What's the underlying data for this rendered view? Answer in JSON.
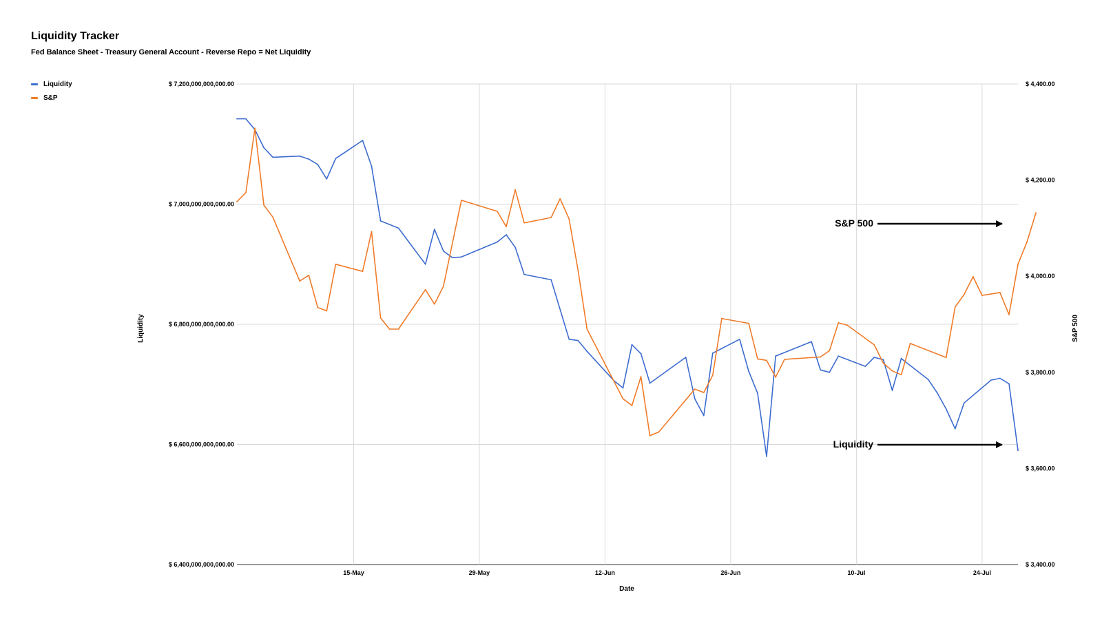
{
  "title": "Liquidity Tracker",
  "subtitle": "Fed Balance Sheet - Treasury General Account - Reverse Repo = Net Liquidity",
  "legend": [
    {
      "label": "Liquidity",
      "color": "#3c6ccf"
    },
    {
      "label": "S&P",
      "color": "#f07b28"
    }
  ],
  "annotations": [
    {
      "text": "S&P 500",
      "series": "S&P"
    },
    {
      "text": "Liquidity",
      "series": "Liquidity"
    }
  ],
  "chart_data": {
    "type": "line",
    "title": "Liquidity Tracker",
    "subtitle": "Fed Balance Sheet - Treasury General Account - Reverse Repo = Net Liquidity",
    "xlabel": "Date",
    "ylabel_left": "Liquidity",
    "ylabel_right": "S&P 500",
    "x_range": [
      "2023-05-02",
      "2023-07-28"
    ],
    "x_ticks": [
      {
        "date": "2023-05-15",
        "label": "15-May"
      },
      {
        "date": "2023-05-29",
        "label": "29-May"
      },
      {
        "date": "2023-06-12",
        "label": "12-Jun"
      },
      {
        "date": "2023-06-26",
        "label": "26-Jun"
      },
      {
        "date": "2023-07-10",
        "label": "10-Jul"
      },
      {
        "date": "2023-07-24",
        "label": "24-Jul"
      }
    ],
    "ylim_left": [
      6400000000000,
      7200000000000
    ],
    "ylim_right": [
      3400,
      4400
    ],
    "y_ticks_left": [
      {
        "value": 6400000000000,
        "label": "$ 6,400,000,000,000.00"
      },
      {
        "value": 6600000000000,
        "label": "$ 6,600,000,000,000.00"
      },
      {
        "value": 6800000000000,
        "label": "$ 6,800,000,000,000.00"
      },
      {
        "value": 7000000000000,
        "label": "$ 7,000,000,000,000.00"
      },
      {
        "value": 7200000000000,
        "label": "$ 7,200,000,000,000.00"
      }
    ],
    "y_ticks_right": [
      {
        "value": 3400,
        "label": "$ 3,400.00"
      },
      {
        "value": 3600,
        "label": "$ 3,600.00"
      },
      {
        "value": 3800,
        "label": "$ 3,800.00"
      },
      {
        "value": 4000,
        "label": "$ 4,000.00"
      },
      {
        "value": 4200,
        "label": "$ 4,200.00"
      },
      {
        "value": 4400,
        "label": "$ 4,400.00"
      }
    ],
    "grid": true,
    "legend_position": "top-left",
    "series": [
      {
        "name": "Liquidity",
        "axis": "left",
        "color": "#3c6ccf",
        "points": [
          [
            "2023-05-02",
            7142000000000
          ],
          [
            "2023-05-03",
            7142000000000
          ],
          [
            "2023-05-04",
            7124000000000
          ],
          [
            "2023-05-05",
            7094000000000
          ],
          [
            "2023-05-06",
            7078000000000
          ],
          [
            "2023-05-09",
            7080000000000
          ],
          [
            "2023-05-10",
            7075000000000
          ],
          [
            "2023-05-11",
            7066000000000
          ],
          [
            "2023-05-12",
            7042000000000
          ],
          [
            "2023-05-13",
            7076000000000
          ],
          [
            "2023-05-16",
            7106000000000
          ],
          [
            "2023-05-17",
            7063000000000
          ],
          [
            "2023-05-18",
            6972000000000
          ],
          [
            "2023-05-20",
            6960000000000
          ],
          [
            "2023-05-23",
            6900000000000
          ],
          [
            "2023-05-24",
            6958000000000
          ],
          [
            "2023-05-25",
            6922000000000
          ],
          [
            "2023-05-26",
            6911000000000
          ],
          [
            "2023-05-27",
            6912000000000
          ],
          [
            "2023-05-31",
            6937000000000
          ],
          [
            "2023-06-01",
            6949000000000
          ],
          [
            "2023-06-02",
            6928000000000
          ],
          [
            "2023-06-03",
            6883000000000
          ],
          [
            "2023-06-06",
            6874000000000
          ],
          [
            "2023-06-08",
            6775000000000
          ],
          [
            "2023-06-09",
            6773000000000
          ],
          [
            "2023-06-10",
            6755000000000
          ],
          [
            "2023-06-13",
            6706000000000
          ],
          [
            "2023-06-14",
            6694000000000
          ],
          [
            "2023-06-15",
            6766000000000
          ],
          [
            "2023-06-16",
            6751000000000
          ],
          [
            "2023-06-17",
            6702000000000
          ],
          [
            "2023-06-21",
            6745000000000
          ],
          [
            "2023-06-22",
            6676000000000
          ],
          [
            "2023-06-23",
            6648000000000
          ],
          [
            "2023-06-24",
            6752000000000
          ],
          [
            "2023-06-27",
            6775000000000
          ],
          [
            "2023-06-28",
            6722000000000
          ],
          [
            "2023-06-29",
            6685000000000
          ],
          [
            "2023-06-30",
            6580000000000
          ],
          [
            "2023-07-01",
            6747000000000
          ],
          [
            "2023-07-05",
            6771000000000
          ],
          [
            "2023-07-06",
            6724000000000
          ],
          [
            "2023-07-07",
            6720000000000
          ],
          [
            "2023-07-08",
            6747000000000
          ],
          [
            "2023-07-11",
            6730000000000
          ],
          [
            "2023-07-12",
            6745000000000
          ],
          [
            "2023-07-13",
            6741000000000
          ],
          [
            "2023-07-14",
            6690000000000
          ],
          [
            "2023-07-15",
            6743000000000
          ],
          [
            "2023-07-18",
            6708000000000
          ],
          [
            "2023-07-19",
            6686000000000
          ],
          [
            "2023-07-20",
            6659000000000
          ],
          [
            "2023-07-21",
            6626000000000
          ],
          [
            "2023-07-22",
            6669000000000
          ],
          [
            "2023-07-25",
            6707000000000
          ],
          [
            "2023-07-26",
            6710000000000
          ],
          [
            "2023-07-27",
            6701000000000
          ],
          [
            "2023-07-28",
            6590000000000
          ]
        ]
      },
      {
        "name": "S&P",
        "axis": "right",
        "color": "#f07b28",
        "points": [
          [
            "2023-05-02",
            4155
          ],
          [
            "2023-05-03",
            4174
          ],
          [
            "2023-05-04",
            4308
          ],
          [
            "2023-05-05",
            4148
          ],
          [
            "2023-05-06",
            4123
          ],
          [
            "2023-05-09",
            3990
          ],
          [
            "2023-05-10",
            4002
          ],
          [
            "2023-05-11",
            3935
          ],
          [
            "2023-05-12",
            3928
          ],
          [
            "2023-05-13",
            4025
          ],
          [
            "2023-05-16",
            4010
          ],
          [
            "2023-05-17",
            4093
          ],
          [
            "2023-05-18",
            3913
          ],
          [
            "2023-05-19",
            3890
          ],
          [
            "2023-05-20",
            3890
          ],
          [
            "2023-05-23",
            3972
          ],
          [
            "2023-05-24",
            3942
          ],
          [
            "2023-05-25",
            3979
          ],
          [
            "2023-05-27",
            4158
          ],
          [
            "2023-05-31",
            4135
          ],
          [
            "2023-06-01",
            4103
          ],
          [
            "2023-06-02",
            4180
          ],
          [
            "2023-06-03",
            4111
          ],
          [
            "2023-06-06",
            4122
          ],
          [
            "2023-06-07",
            4161
          ],
          [
            "2023-06-08",
            4119
          ],
          [
            "2023-06-09",
            4012
          ],
          [
            "2023-06-10",
            3890
          ],
          [
            "2023-06-14",
            3745
          ],
          [
            "2023-06-15",
            3731
          ],
          [
            "2023-06-16",
            3791
          ],
          [
            "2023-06-17",
            3668
          ],
          [
            "2023-06-18",
            3676
          ],
          [
            "2023-06-22",
            3765
          ],
          [
            "2023-06-23",
            3758
          ],
          [
            "2023-06-24",
            3794
          ],
          [
            "2023-06-25",
            3912
          ],
          [
            "2023-06-28",
            3902
          ],
          [
            "2023-06-29",
            3828
          ],
          [
            "2023-06-30",
            3825
          ],
          [
            "2023-07-01",
            3790
          ],
          [
            "2023-07-02",
            3827
          ],
          [
            "2023-07-06",
            3832
          ],
          [
            "2023-07-07",
            3845
          ],
          [
            "2023-07-08",
            3903
          ],
          [
            "2023-07-09",
            3898
          ],
          [
            "2023-07-12",
            3857
          ],
          [
            "2023-07-13",
            3819
          ],
          [
            "2023-07-14",
            3803
          ],
          [
            "2023-07-15",
            3795
          ],
          [
            "2023-07-16",
            3860
          ],
          [
            "2023-07-20",
            3831
          ],
          [
            "2023-07-21",
            3936
          ],
          [
            "2023-07-22",
            3962
          ],
          [
            "2023-07-23",
            3999
          ],
          [
            "2023-07-24",
            3960
          ],
          [
            "2023-07-26",
            3966
          ],
          [
            "2023-07-27",
            3920
          ],
          [
            "2023-07-28",
            4025
          ],
          [
            "2023-07-29",
            4071
          ],
          [
            "2023-07-30",
            4132
          ]
        ]
      }
    ]
  }
}
